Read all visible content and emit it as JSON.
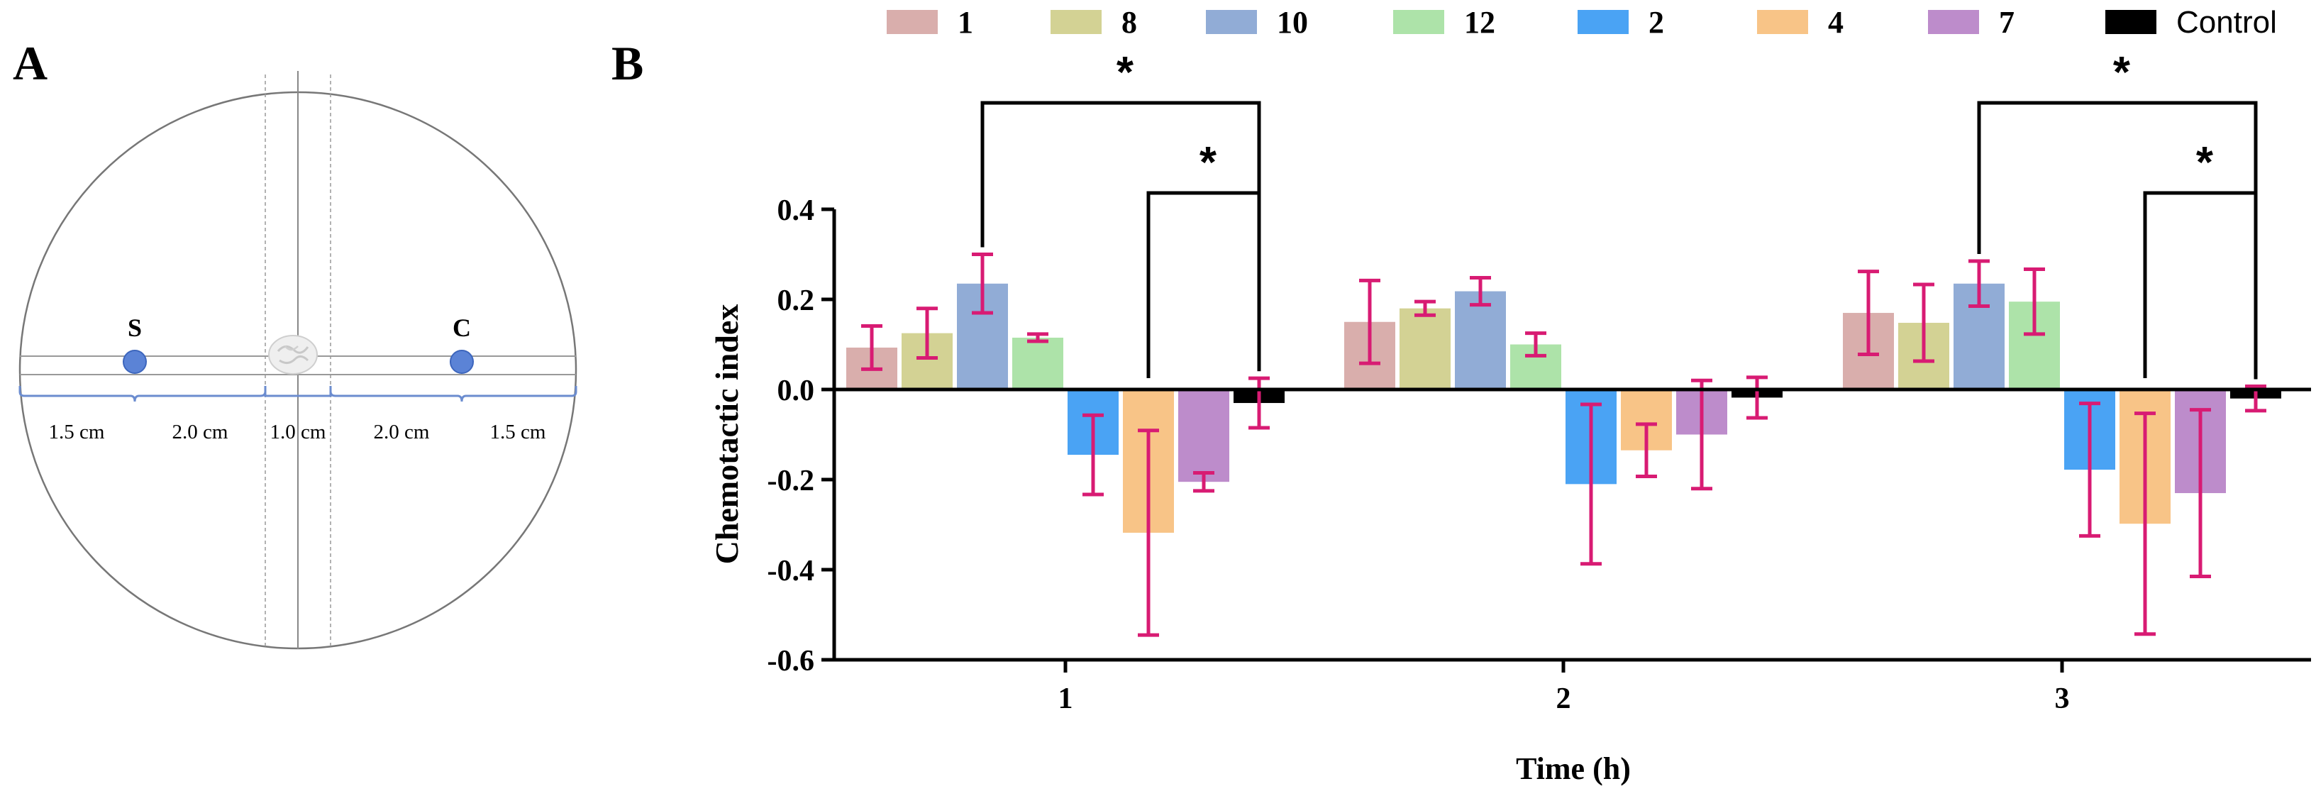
{
  "panel_a": {
    "label": "A",
    "dish_labels": {
      "sample": "S",
      "control": "C"
    },
    "distances": [
      "1.5 cm",
      "2.0 cm",
      "1.0 cm",
      "2.0 cm",
      "1.5 cm"
    ]
  },
  "panel_b": {
    "label": "B"
  },
  "colors": {
    "error_bar": "#d81b73",
    "axis": "#000000",
    "dish_outline": "#777777",
    "dish_point": "#5b83d6"
  },
  "chart_data": {
    "type": "bar",
    "title": "",
    "xlabel": "Time (h)",
    "ylabel": "Chemotactic index",
    "ylim": [
      -0.6,
      0.4
    ],
    "yticks": [
      0.4,
      0.2,
      0.0,
      -0.2,
      -0.4,
      -0.6
    ],
    "ytick_labels": [
      "0.4",
      "0.2",
      "0.0",
      "-0.2",
      "-0.4",
      "-0.6"
    ],
    "categories": [
      "1",
      "2",
      "3"
    ],
    "legend_position": "top",
    "series": [
      {
        "name": "1",
        "color": "#d9aeac",
        "values": [
          0.093,
          0.15,
          0.17
        ],
        "errors": [
          0.048,
          0.092,
          0.092
        ]
      },
      {
        "name": "8",
        "color": "#d3d294",
        "values": [
          0.125,
          0.18,
          0.148
        ],
        "errors": [
          0.055,
          0.015,
          0.085
        ]
      },
      {
        "name": "10",
        "color": "#91acd6",
        "values": [
          0.235,
          0.218,
          0.235
        ],
        "errors": [
          0.065,
          0.03,
          0.05
        ]
      },
      {
        "name": "12",
        "color": "#ade3a9",
        "values": [
          0.115,
          0.1,
          0.195
        ],
        "errors": [
          0.008,
          0.025,
          0.072
        ]
      },
      {
        "name": "2",
        "color": "#4aa3f4",
        "values": [
          -0.145,
          -0.21,
          -0.178
        ],
        "errors": [
          0.088,
          0.177,
          0.147
        ]
      },
      {
        "name": "4",
        "color": "#f8c487",
        "values": [
          -0.318,
          -0.135,
          -0.298
        ],
        "errors": [
          0.227,
          0.058,
          0.245
        ]
      },
      {
        "name": "7",
        "color": "#bd8ccb",
        "values": [
          -0.205,
          -0.1,
          -0.23
        ],
        "errors": [
          0.02,
          0.12,
          0.185
        ]
      },
      {
        "name": "Control",
        "color": "#000000",
        "values": [
          -0.03,
          -0.018,
          -0.02
        ],
        "errors": [
          0.055,
          0.045,
          0.027
        ]
      }
    ],
    "annotations": [
      {
        "text": "*",
        "category": "1",
        "from_series": "10",
        "to_series": "Control",
        "level": "upper"
      },
      {
        "text": "*",
        "category": "1",
        "from_series": "4",
        "to_series": "Control",
        "level": "lower"
      },
      {
        "text": "*",
        "category": "3",
        "from_series": "10",
        "to_series": "Control",
        "level": "upper"
      },
      {
        "text": "*",
        "category": "3",
        "from_series": "4",
        "to_series": "Control",
        "level": "lower"
      }
    ]
  }
}
